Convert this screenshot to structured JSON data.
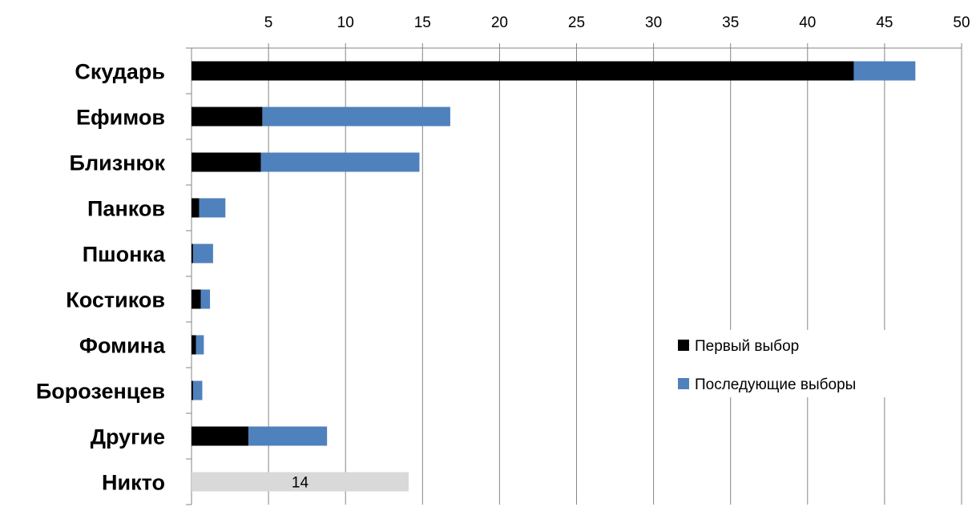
{
  "chart_data": {
    "type": "bar",
    "orientation": "horizontal",
    "stacked": true,
    "categories": [
      "Скударь",
      "Ефимов",
      "Близнюк",
      "Панков",
      "Пшонка",
      "Костиков",
      "Фомина",
      "Борозенцев",
      "Другие",
      "Никто"
    ],
    "series": [
      {
        "name": "Первый выбор",
        "color": "#000000",
        "values": [
          43,
          4.6,
          4.5,
          0.5,
          0.1,
          0.6,
          0.3,
          0.1,
          3.7,
          null
        ],
        "labels": [
          "43",
          "5",
          "4",
          "",
          "",
          "",
          "",
          "",
          "4",
          ""
        ]
      },
      {
        "name": "Последующие выборы",
        "color": "#4f81bd",
        "values": [
          4,
          12.2,
          10.3,
          1.7,
          1.3,
          0.6,
          0.5,
          0.6,
          5.1,
          null
        ],
        "labels": [
          "",
          "",
          "",
          "",
          "",
          "",
          "",
          "",
          "",
          ""
        ]
      },
      {
        "name": "",
        "color": "#d9d9d9",
        "values": [
          null,
          null,
          null,
          null,
          null,
          null,
          null,
          null,
          null,
          14.1
        ],
        "labels": [
          "",
          "",
          "",
          "",
          "",
          "",
          "",
          "",
          "",
          "14"
        ]
      }
    ],
    "xlim": [
      0,
      50
    ],
    "x_ticks": [
      "5",
      "10",
      "15",
      "20",
      "25",
      "30",
      "35",
      "40",
      "45",
      "50"
    ],
    "x_tick_values": [
      5,
      10,
      15,
      20,
      25,
      30,
      35,
      40,
      45,
      50
    ],
    "x_axis_position": "top",
    "grid": "vertical",
    "legend": {
      "position": "right",
      "entries": [
        {
          "name": "Первый выбор",
          "color": "#000000"
        },
        {
          "name": "Последующие выборы",
          "color": "#4f81bd"
        }
      ]
    },
    "title": "",
    "xlabel": "",
    "ylabel": ""
  }
}
